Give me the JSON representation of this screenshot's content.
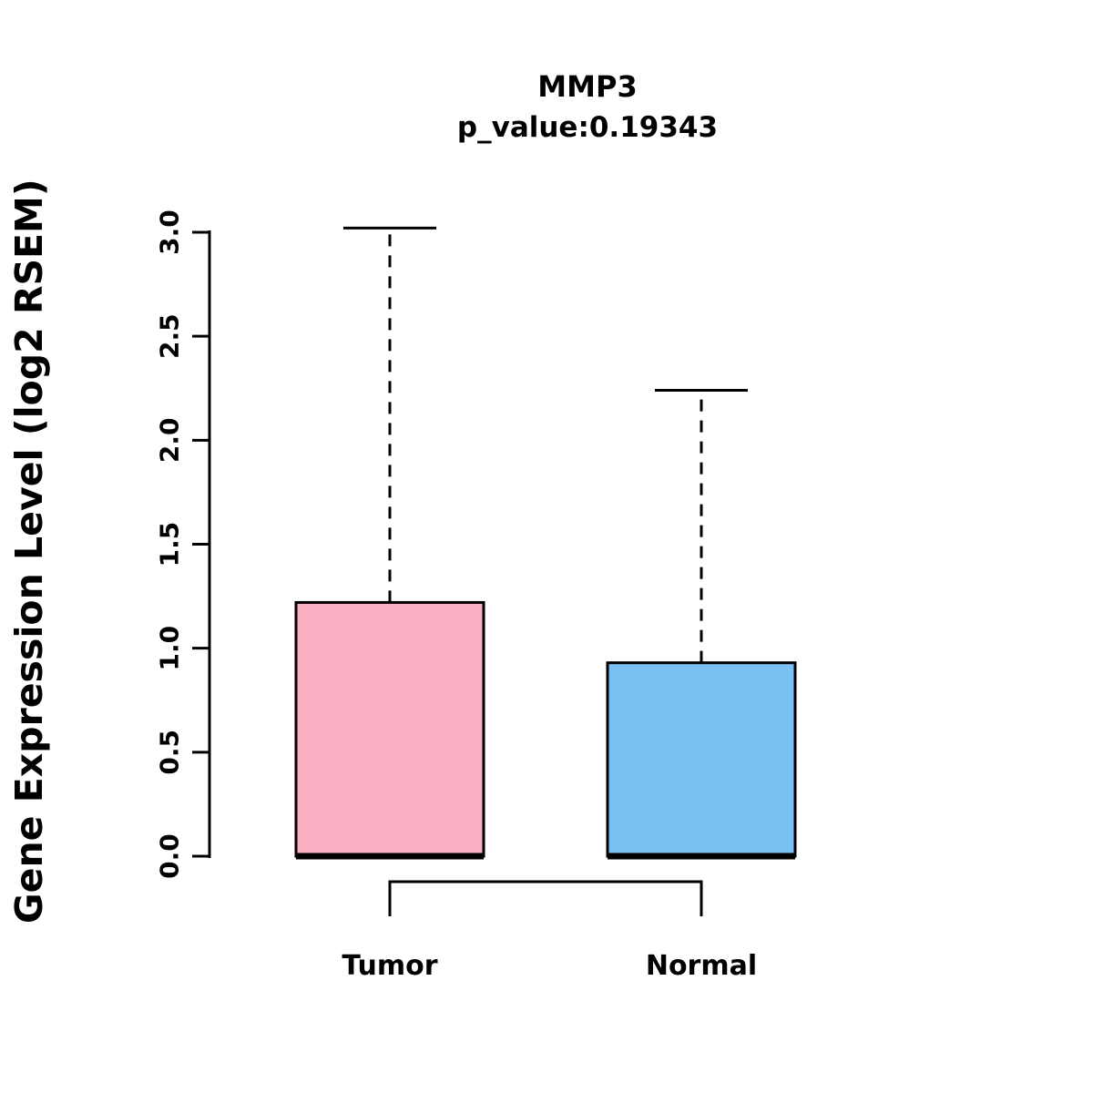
{
  "chart_data": {
    "type": "boxplot",
    "title": "MMP3",
    "subtitle": "p_value:0.19343",
    "p_value": 0.19343,
    "gene": "MMP3",
    "ylabel": "Gene Expression Level (log2 RSEM)",
    "ylim": [
      0,
      3.0
    ],
    "yticks": [
      0,
      0.5,
      1.0,
      1.5,
      2.0,
      2.5,
      3.0
    ],
    "ytick_labels": [
      "0.0",
      "0.5",
      "1.0",
      "1.5",
      "2.0",
      "2.5",
      "3.0"
    ],
    "grid": false,
    "legend": "none",
    "comparison_bracket": true,
    "groups": [
      {
        "label": "Tumor",
        "color": "#FBB0C3",
        "whisker_low": 0.0,
        "q1": 0.0,
        "median": 0.0,
        "q3": 1.22,
        "whisker_high": 3.02
      },
      {
        "label": "Normal",
        "color": "#79C1F2",
        "whisker_low": 0.0,
        "q1": 0.0,
        "median": 0.0,
        "q3": 0.93,
        "whisker_high": 2.24
      }
    ]
  }
}
